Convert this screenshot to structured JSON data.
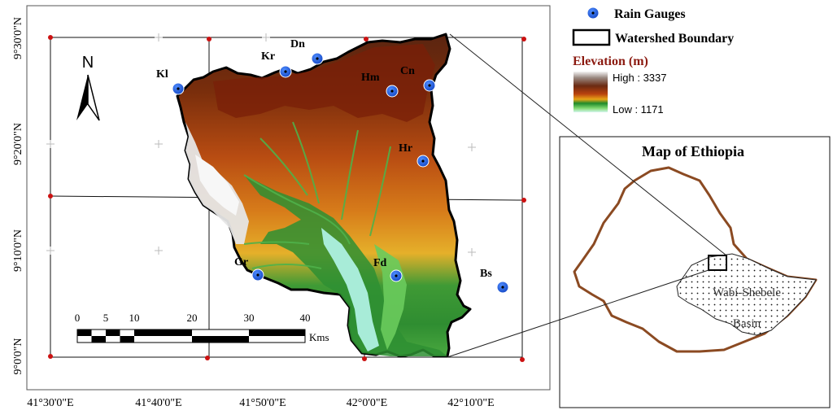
{
  "main_map": {
    "north_label": "N",
    "lat_labels": [
      "9°30'0\"N",
      "9°20'0\"N",
      "9°10'0\"N",
      "9°0'0\"N"
    ],
    "lon_labels": [
      "41°30'0\"E",
      "41°40'0\"E",
      "41°50'0\"E",
      "42°0'0\"E",
      "42°10'0\"E"
    ],
    "scale_bar": {
      "ticks": [
        "0",
        "5",
        "10",
        "20",
        "30",
        "40"
      ],
      "unit": "Kms"
    },
    "gauges": [
      {
        "code": "Kl"
      },
      {
        "code": "Kr"
      },
      {
        "code": "Dn"
      },
      {
        "code": "Hm"
      },
      {
        "code": "Cn"
      },
      {
        "code": "Hr"
      },
      {
        "code": "Gr"
      },
      {
        "code": "Fd"
      },
      {
        "code": "Bs"
      }
    ]
  },
  "legend": {
    "rain_gauges": "Rain Gauges",
    "watershed_boundary": "Watershed Boundary",
    "elevation_title": "Elevation (m)",
    "high": "High : 3337",
    "low": "Low : 1171",
    "ramp_colors": [
      "#ffffff",
      "#a5a5a5",
      "#6b3a1c",
      "#8b2a0a",
      "#c05012",
      "#e09012",
      "#1f8a2a",
      "#7fd86f",
      "#c8f0e8"
    ]
  },
  "inset": {
    "title": "Map of Ethiopia",
    "basin_label_line1": "Wabi-Shebele",
    "basin_label_line2": "Basin",
    "country_border_color": "#8b4a22"
  }
}
